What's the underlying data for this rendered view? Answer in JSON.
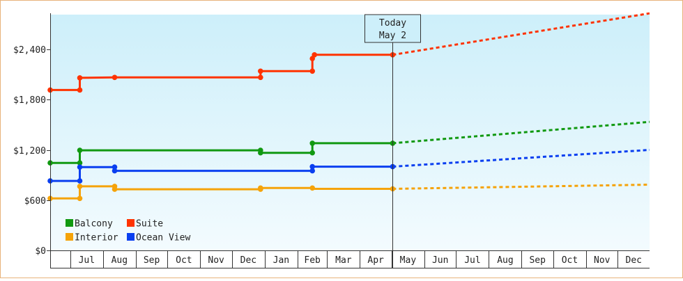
{
  "chart_data": {
    "type": "line",
    "title": "",
    "xlabel": "",
    "ylabel": "",
    "ylim": [
      0,
      2400
    ],
    "yticks": [
      {
        "value": 0,
        "label": "$0"
      },
      {
        "value": 600,
        "label": "$600"
      },
      {
        "value": 1200,
        "label": "$1,200"
      },
      {
        "value": 1800,
        "label": "$1,800"
      },
      {
        "value": 2400,
        "label": "$2,400"
      }
    ],
    "x_range": [
      "2025-06-12",
      "2026-12-31"
    ],
    "months": [
      {
        "label": "Jul",
        "start": "2025-07-01"
      },
      {
        "label": "Aug",
        "start": "2025-08-01"
      },
      {
        "label": "Sep",
        "start": "2025-09-01"
      },
      {
        "label": "Oct",
        "start": "2025-10-01"
      },
      {
        "label": "Nov",
        "start": "2025-11-01"
      },
      {
        "label": "Dec",
        "start": "2025-12-01"
      },
      {
        "label": "Jan",
        "start": "2026-01-01"
      },
      {
        "label": "Feb",
        "start": "2026-02-01"
      },
      {
        "label": "Mar",
        "start": "2026-03-01"
      },
      {
        "label": "Apr",
        "start": "2026-04-01"
      },
      {
        "label": "May",
        "start": "2026-05-01"
      },
      {
        "label": "Jun",
        "start": "2026-06-01"
      },
      {
        "label": "Jul",
        "start": "2026-07-01"
      },
      {
        "label": "Aug",
        "start": "2026-08-01"
      },
      {
        "label": "Sep",
        "start": "2026-09-01"
      },
      {
        "label": "Oct",
        "start": "2026-10-01"
      },
      {
        "label": "Nov",
        "start": "2026-11-01"
      },
      {
        "label": "Dec",
        "start": "2026-12-01"
      },
      {
        "label": "",
        "start": "2027-01-01"
      }
    ],
    "today": {
      "line1": "Today",
      "line2": "May 2",
      "date": "2026-05-02"
    },
    "grid": false,
    "legend_position": "bottom-left",
    "series": [
      {
        "name": "Balcony",
        "color": "#119911",
        "points": [
          {
            "date": "2025-06-12",
            "value": 1045
          },
          {
            "date": "2025-07-10",
            "value": 1045
          },
          {
            "date": "2025-07-10",
            "value": 1195
          },
          {
            "date": "2025-08-12",
            "value": 1195
          },
          {
            "date": "2025-12-28",
            "value": 1195
          },
          {
            "date": "2025-12-28",
            "value": 1165
          },
          {
            "date": "2026-02-15",
            "value": 1165
          },
          {
            "date": "2026-02-15",
            "value": 1280
          },
          {
            "date": "2026-05-02",
            "value": 1280
          }
        ],
        "markers": [
          {
            "date": "2025-06-12",
            "value": 1045
          },
          {
            "date": "2025-07-10",
            "value": 1045
          },
          {
            "date": "2025-07-10",
            "value": 1195
          },
          {
            "date": "2025-12-28",
            "value": 1195
          },
          {
            "date": "2025-12-28",
            "value": 1165
          },
          {
            "date": "2026-02-15",
            "value": 1165
          },
          {
            "date": "2026-02-15",
            "value": 1280
          },
          {
            "date": "2026-05-02",
            "value": 1280
          }
        ],
        "forecast": [
          {
            "date": "2026-05-02",
            "value": 1280
          },
          {
            "date": "2026-12-31",
            "value": 1535
          }
        ]
      },
      {
        "name": "Interior",
        "color": "#f5a30a",
        "points": [
          {
            "date": "2025-06-12",
            "value": 620
          },
          {
            "date": "2025-07-10",
            "value": 620
          },
          {
            "date": "2025-07-10",
            "value": 765
          },
          {
            "date": "2025-08-12",
            "value": 765
          },
          {
            "date": "2025-08-12",
            "value": 730
          },
          {
            "date": "2025-12-28",
            "value": 730
          },
          {
            "date": "2025-12-28",
            "value": 745
          },
          {
            "date": "2026-02-15",
            "value": 745
          },
          {
            "date": "2026-02-15",
            "value": 735
          },
          {
            "date": "2026-05-02",
            "value": 735
          }
        ],
        "markers": [
          {
            "date": "2025-06-12",
            "value": 620
          },
          {
            "date": "2025-07-10",
            "value": 620
          },
          {
            "date": "2025-07-10",
            "value": 765
          },
          {
            "date": "2025-08-12",
            "value": 765
          },
          {
            "date": "2025-08-12",
            "value": 730
          },
          {
            "date": "2025-12-28",
            "value": 730
          },
          {
            "date": "2025-12-28",
            "value": 745
          },
          {
            "date": "2026-02-15",
            "value": 745
          },
          {
            "date": "2026-05-02",
            "value": 735
          }
        ],
        "forecast": [
          {
            "date": "2026-05-02",
            "value": 735
          },
          {
            "date": "2026-12-31",
            "value": 785
          }
        ]
      },
      {
        "name": "Suite",
        "color": "#ff3300",
        "points": [
          {
            "date": "2025-06-12",
            "value": 1915
          },
          {
            "date": "2025-07-10",
            "value": 1915
          },
          {
            "date": "2025-07-10",
            "value": 2060
          },
          {
            "date": "2025-08-12",
            "value": 2065
          },
          {
            "date": "2025-12-28",
            "value": 2065
          },
          {
            "date": "2025-12-28",
            "value": 2140
          },
          {
            "date": "2026-02-15",
            "value": 2140
          },
          {
            "date": "2026-02-15",
            "value": 2290
          },
          {
            "date": "2026-02-17",
            "value": 2335
          },
          {
            "date": "2026-05-02",
            "value": 2335
          }
        ],
        "markers": [
          {
            "date": "2025-06-12",
            "value": 1915
          },
          {
            "date": "2025-07-10",
            "value": 1915
          },
          {
            "date": "2025-07-10",
            "value": 2060
          },
          {
            "date": "2025-08-12",
            "value": 2065
          },
          {
            "date": "2025-12-28",
            "value": 2065
          },
          {
            "date": "2025-12-28",
            "value": 2140
          },
          {
            "date": "2026-02-15",
            "value": 2140
          },
          {
            "date": "2026-02-15",
            "value": 2290
          },
          {
            "date": "2026-02-17",
            "value": 2335
          },
          {
            "date": "2026-05-02",
            "value": 2335
          }
        ],
        "forecast": [
          {
            "date": "2026-05-02",
            "value": 2335
          },
          {
            "date": "2026-12-31",
            "value": 2830
          }
        ]
      },
      {
        "name": "Ocean View",
        "color": "#0a3ff0",
        "points": [
          {
            "date": "2025-06-12",
            "value": 830
          },
          {
            "date": "2025-07-10",
            "value": 830
          },
          {
            "date": "2025-07-10",
            "value": 995
          },
          {
            "date": "2025-08-12",
            "value": 995
          },
          {
            "date": "2025-08-12",
            "value": 950
          },
          {
            "date": "2026-02-15",
            "value": 950
          },
          {
            "date": "2026-02-15",
            "value": 1000
          },
          {
            "date": "2026-05-02",
            "value": 1000
          }
        ],
        "markers": [
          {
            "date": "2025-06-12",
            "value": 830
          },
          {
            "date": "2025-07-10",
            "value": 830
          },
          {
            "date": "2025-07-10",
            "value": 995
          },
          {
            "date": "2025-08-12",
            "value": 995
          },
          {
            "date": "2025-08-12",
            "value": 950
          },
          {
            "date": "2026-02-15",
            "value": 950
          },
          {
            "date": "2026-02-15",
            "value": 1000
          },
          {
            "date": "2026-05-02",
            "value": 1000
          }
        ],
        "forecast": [
          {
            "date": "2026-05-02",
            "value": 1000
          },
          {
            "date": "2026-12-31",
            "value": 1200
          }
        ]
      }
    ],
    "legend_order": [
      "Balcony",
      "Suite",
      "Interior",
      "Ocean View"
    ],
    "colors": {
      "plot_bg_top": "#cdeffa",
      "plot_bg_bottom": "#f3fbfe",
      "border": "#e8b27a",
      "today_line": "#333333"
    }
  }
}
